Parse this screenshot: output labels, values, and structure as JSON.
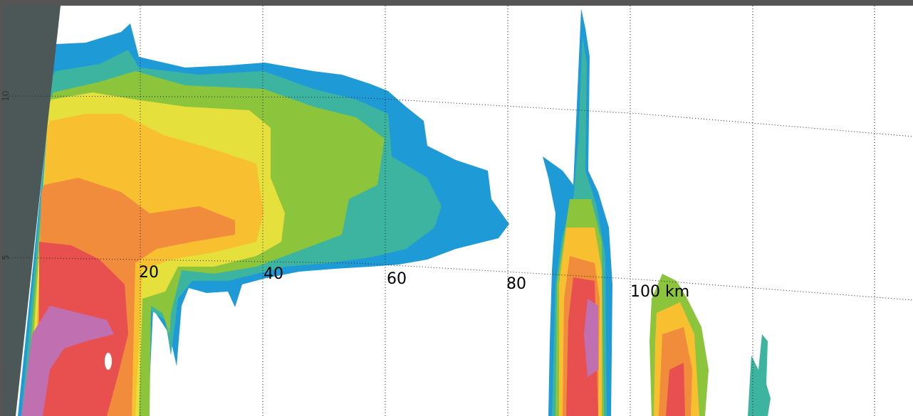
{
  "range_labels": [
    "20",
    "40",
    "60",
    "80",
    "100 km"
  ],
  "height_labels": [
    "10",
    "5"
  ]
}
